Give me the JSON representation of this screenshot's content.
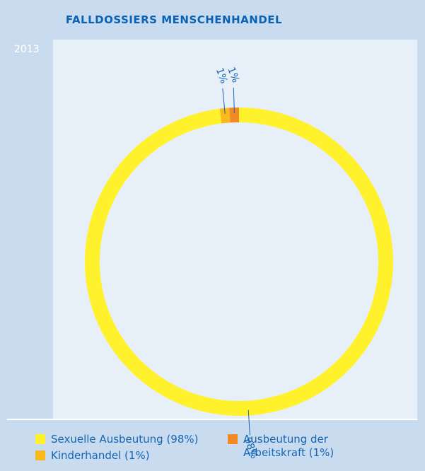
{
  "chart_data": {
    "type": "pie",
    "donut": true,
    "title": "FALLDOSSIERS MENSCHENHANDEL",
    "subtitle": "2013",
    "labels": [
      "Sexuelle Ausbeutung (98%)",
      "Kinderhandel (1%)",
      "Ausbeutung der Arbeitskraft (1%)"
    ],
    "values": [
      98,
      1,
      1
    ],
    "value_labels": [
      "98%",
      "1%",
      "1%"
    ],
    "colors": [
      "#fff22d",
      "#fbb91b",
      "#f28a23"
    ]
  }
}
